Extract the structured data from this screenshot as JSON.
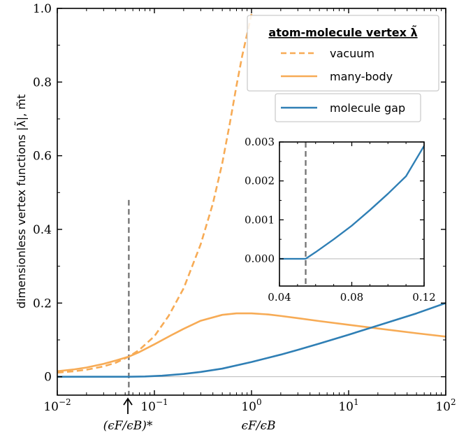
{
  "chart_data": [
    {
      "type": "line",
      "xscale": "log",
      "xlim": [
        0.01,
        100
      ],
      "ylim": [
        -0.05,
        1.0
      ],
      "x_ticks": [
        0.01,
        0.1,
        1,
        10,
        100
      ],
      "x_tick_labels": [
        {
          "base": "10",
          "exp": "−2"
        },
        {
          "base": "10",
          "exp": "−1"
        },
        {
          "base": "10",
          "exp": "0"
        },
        {
          "base": "10",
          "exp": "1"
        },
        {
          "base": "10",
          "exp": "2"
        }
      ],
      "y_ticks": [
        0,
        0.2,
        0.4,
        0.6,
        0.8,
        1.0
      ],
      "y_tick_labels": [
        "0",
        "0.2",
        "0.4",
        "0.6",
        "0.8",
        "1.0"
      ],
      "xlabel": "ϵF/ϵB",
      "ylabel": "dimensionless vertex functions |λ̃|, m̃t",
      "marker_label": "(ϵF/ϵB)*",
      "marker_x": 0.0545,
      "legend": {
        "title": "atom-molecule vertex λ̃",
        "position": "top-right"
      },
      "series": [
        {
          "name": "vacuum",
          "style": "dashed",
          "color": "#f7ab55",
          "legend_group": "main",
          "x": [
            0.01,
            0.015,
            0.02,
            0.03,
            0.04,
            0.055,
            0.07,
            0.1,
            0.14,
            0.2,
            0.3,
            0.4,
            0.5,
            0.6,
            0.7,
            0.8,
            0.9,
            1.0
          ],
          "y": [
            0.011,
            0.015,
            0.019,
            0.028,
            0.038,
            0.055,
            0.073,
            0.11,
            0.165,
            0.24,
            0.36,
            0.47,
            0.58,
            0.69,
            0.79,
            0.87,
            0.93,
            0.985
          ]
        },
        {
          "name": "many-body",
          "style": "solid",
          "color": "#f7ab55",
          "legend_group": "main",
          "x": [
            0.01,
            0.015,
            0.02,
            0.03,
            0.04,
            0.055,
            0.07,
            0.1,
            0.15,
            0.2,
            0.3,
            0.5,
            0.7,
            1.0,
            1.5,
            2,
            3,
            5,
            10,
            20,
            50,
            100
          ],
          "y": [
            0.015,
            0.02,
            0.025,
            0.035,
            0.044,
            0.055,
            0.067,
            0.088,
            0.113,
            0.13,
            0.152,
            0.168,
            0.172,
            0.172,
            0.169,
            0.165,
            0.159,
            0.151,
            0.141,
            0.131,
            0.118,
            0.109
          ]
        },
        {
          "name": "molecule gap",
          "style": "solid",
          "color": "#2f7fb5",
          "legend_group": "gap",
          "x": [
            0.01,
            0.03,
            0.055,
            0.08,
            0.12,
            0.2,
            0.3,
            0.5,
            1,
            2,
            3,
            5,
            10,
            20,
            50,
            100
          ],
          "y": [
            0,
            0,
            0,
            0.0007,
            0.0028,
            0.0075,
            0.013,
            0.022,
            0.04,
            0.06,
            0.073,
            0.09,
            0.114,
            0.139,
            0.172,
            0.2
          ]
        }
      ]
    },
    {
      "type": "line",
      "inset": true,
      "xscale": "linear",
      "xlim": [
        0.04,
        0.12
      ],
      "ylim": [
        -0.0007,
        0.003
      ],
      "x_ticks": [
        0.04,
        0.08,
        0.12
      ],
      "x_tick_labels": [
        "0.04",
        "0.08",
        "0.12"
      ],
      "y_ticks": [
        0,
        0.001,
        0.002,
        0.003
      ],
      "y_tick_labels": [
        "0.000",
        "0.001",
        "0.002",
        "0.003"
      ],
      "marker_x": 0.0545,
      "series": [
        {
          "name": "molecule gap",
          "color": "#2f7fb5",
          "x": [
            0.04,
            0.0545,
            0.06,
            0.07,
            0.08,
            0.09,
            0.1,
            0.11,
            0.12
          ],
          "y": [
            0,
            0,
            0.00017,
            0.0005,
            0.00085,
            0.00125,
            0.00167,
            0.00212,
            0.0029
          ]
        }
      ]
    }
  ]
}
